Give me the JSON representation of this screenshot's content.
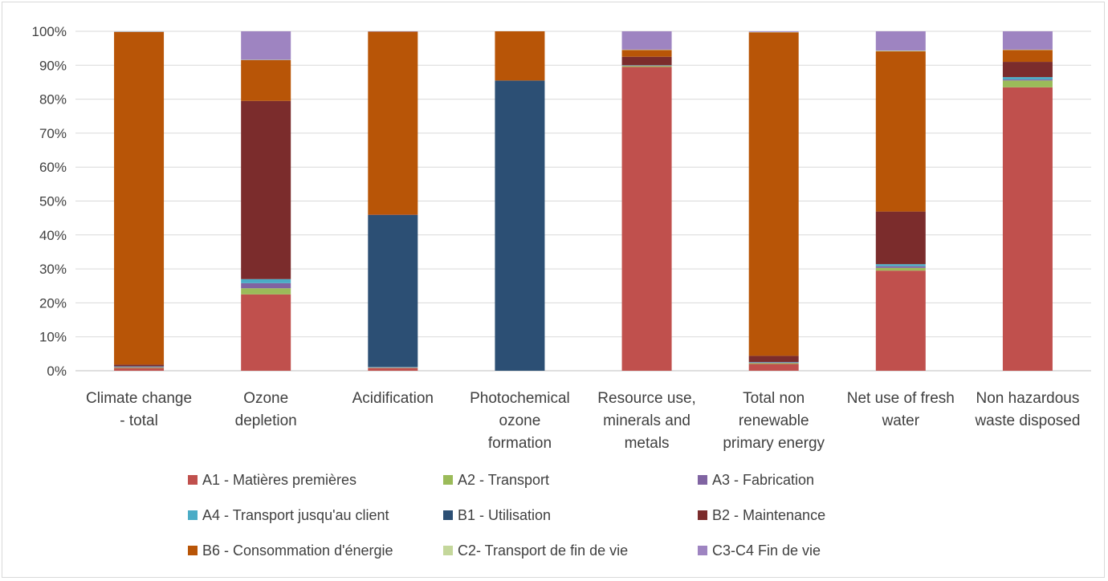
{
  "chart_data": {
    "type": "bar",
    "stacked": true,
    "percent": true,
    "categories": [
      [
        "Climate change",
        "- total"
      ],
      [
        "Ozone",
        "depletion"
      ],
      [
        "Acidification"
      ],
      [
        "Photochemical",
        "ozone",
        "formation"
      ],
      [
        "Resource use,",
        "minerals and",
        "metals"
      ],
      [
        "Total non",
        "renewable",
        "primary energy"
      ],
      [
        "Net use of fresh",
        "water"
      ],
      [
        "Non hazardous",
        "waste disposed"
      ]
    ],
    "ylim": [
      0,
      100
    ],
    "yticks": [
      "0%",
      "10%",
      "20%",
      "30%",
      "40%",
      "50%",
      "60%",
      "70%",
      "80%",
      "90%",
      "100%"
    ],
    "grid": true,
    "legend": "bottom",
    "series": [
      {
        "name": "A1 - Matières premières",
        "color": "#c0504d",
        "values": [
          0.8,
          22.5,
          0.8,
          0,
          89.5,
          2.0,
          29.5,
          83.5
        ]
      },
      {
        "name": "A2 - Transport",
        "color": "#9bbb59",
        "values": [
          0.2,
          1.8,
          0.1,
          0,
          0.3,
          0.3,
          0.8,
          2.0
        ]
      },
      {
        "name": "A3 - Fabrication",
        "color": "#8064a2",
        "values": [
          0.2,
          1.5,
          0.1,
          0,
          0.1,
          0.2,
          0.5,
          0.3
        ]
      },
      {
        "name": "A4 - Transport jusqu'au client",
        "color": "#4bacc6",
        "values": [
          0.1,
          1.2,
          0.1,
          0,
          0.1,
          0.1,
          0.6,
          0.7
        ]
      },
      {
        "name": "B1 - Utilisation",
        "color": "#2c4f74",
        "values": [
          0,
          0,
          44.8,
          85.5,
          0,
          0,
          0,
          0
        ]
      },
      {
        "name": "B2 - Maintenance",
        "color": "#7b2c2c",
        "values": [
          0.5,
          52.5,
          0.1,
          0,
          2.5,
          1.8,
          15.5,
          4.5
        ]
      },
      {
        "name": "B6 - Consommation d'énergie",
        "color": "#b85507",
        "values": [
          98.0,
          12.0,
          53.9,
          14.5,
          2.0,
          95.3,
          47.2,
          3.5
        ]
      },
      {
        "name": "C2- Transport de fin de vie",
        "color": "#c4d79b",
        "values": [
          0.1,
          0.1,
          0.0,
          0,
          0.1,
          0.1,
          0.2,
          0.1
        ]
      },
      {
        "name": "C3-C4 Fin de vie",
        "color": "#9e84c1",
        "values": [
          0.1,
          8.4,
          0.1,
          0,
          5.4,
          0.2,
          5.7,
          5.4
        ]
      }
    ]
  }
}
